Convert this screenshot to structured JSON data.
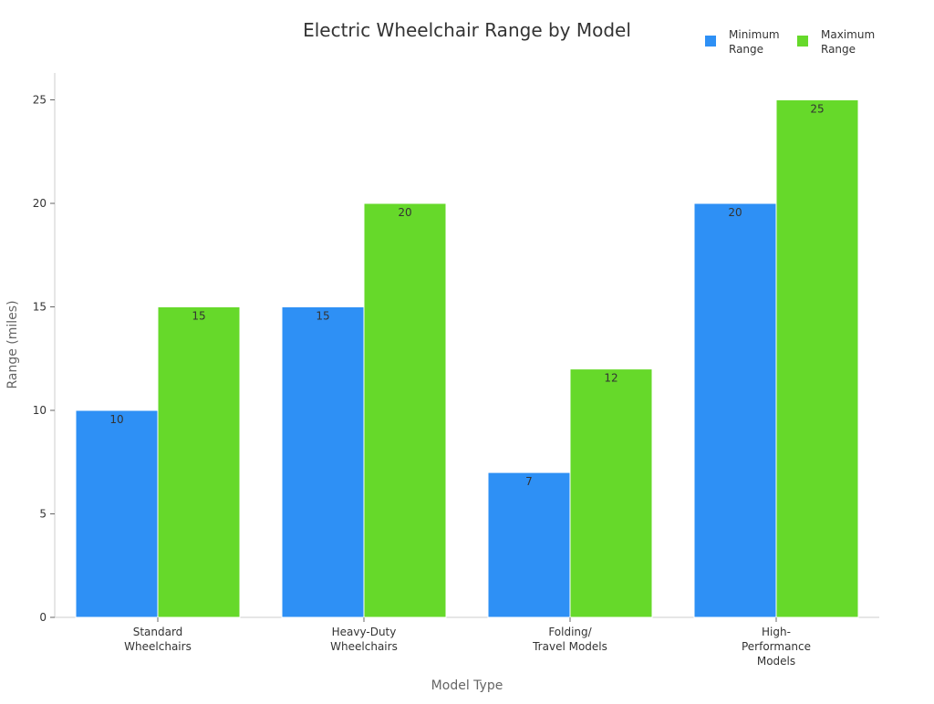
{
  "chart_data": {
    "type": "bar",
    "title": "Electric Wheelchair Range by Model",
    "xlabel": "Model Type",
    "ylabel": "Range (miles)",
    "categories": [
      "Standard Wheelchairs",
      "Heavy-Duty Wheelchairs",
      "Folding/ Travel Models",
      "High- Performance Models"
    ],
    "category_lines": [
      [
        "Standard",
        "Wheelchairs"
      ],
      [
        "Heavy-Duty",
        "Wheelchairs"
      ],
      [
        "Folding/",
        "Travel Models"
      ],
      [
        "High-",
        "Performance",
        "Models"
      ]
    ],
    "series": [
      {
        "name": "Minimum Range",
        "name_lines": [
          "Minimum",
          "Range"
        ],
        "color": "#2e90f5",
        "values": [
          10,
          15,
          7,
          20
        ]
      },
      {
        "name": "Maximum Range",
        "name_lines": [
          "Maximum",
          "Range"
        ],
        "color": "#66d92a",
        "values": [
          15,
          20,
          12,
          25
        ]
      }
    ],
    "ylim": [
      0,
      26.3
    ],
    "yticks": [
      0,
      5,
      10,
      15,
      20,
      25
    ],
    "grid": false,
    "legend_position": "top-right",
    "data_labels": true
  }
}
